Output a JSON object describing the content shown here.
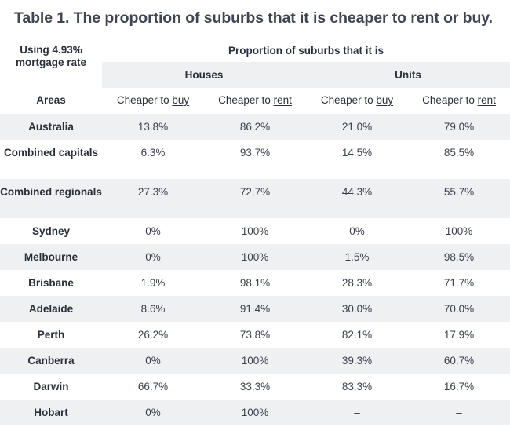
{
  "title": "Table 1. The proportion of suburbs that it is cheaper to rent or buy.",
  "header": {
    "rate_note": "Using 4.93% mortgage rate",
    "proportion_label": "Proportion of suburbs that it is",
    "houses_label": "Houses",
    "units_label": "Units",
    "areas_label": "Areas",
    "cheaper_to": "Cheaper to",
    "buy": "buy",
    "rent": "rent"
  },
  "rows": [
    {
      "area": "Australia",
      "houses_buy": "13.8%",
      "houses_rent": "86.2%",
      "units_buy": "21.0%",
      "units_rent": "79.0%"
    },
    {
      "area": "Combined capitals",
      "houses_buy": "6.3%",
      "houses_rent": "93.7%",
      "units_buy": "14.5%",
      "units_rent": "85.5%"
    },
    {
      "area": "Combined regionals",
      "houses_buy": "27.3%",
      "houses_rent": "72.7%",
      "units_buy": "44.3%",
      "units_rent": "55.7%"
    },
    {
      "area": "Sydney",
      "houses_buy": "0%",
      "houses_rent": "100%",
      "units_buy": "0%",
      "units_rent": "100%"
    },
    {
      "area": "Melbourne",
      "houses_buy": "0%",
      "houses_rent": "100%",
      "units_buy": "1.5%",
      "units_rent": "98.5%"
    },
    {
      "area": "Brisbane",
      "houses_buy": "1.9%",
      "houses_rent": "98.1%",
      "units_buy": "28.3%",
      "units_rent": "71.7%"
    },
    {
      "area": "Adelaide",
      "houses_buy": "8.6%",
      "houses_rent": "91.4%",
      "units_buy": "30.0%",
      "units_rent": "70.0%"
    },
    {
      "area": "Perth",
      "houses_buy": "26.2%",
      "houses_rent": "73.8%",
      "units_buy": "82.1%",
      "units_rent": "17.9%"
    },
    {
      "area": "Canberra",
      "houses_buy": "0%",
      "houses_rent": "100%",
      "units_buy": "39.3%",
      "units_rent": "60.7%"
    },
    {
      "area": "Darwin",
      "houses_buy": "66.7%",
      "houses_rent": "33.3%",
      "units_buy": "83.3%",
      "units_rent": "16.7%"
    },
    {
      "area": "Hobart",
      "houses_buy": "0%",
      "houses_rent": "100%",
      "units_buy": "–",
      "units_rent": "–"
    }
  ]
}
